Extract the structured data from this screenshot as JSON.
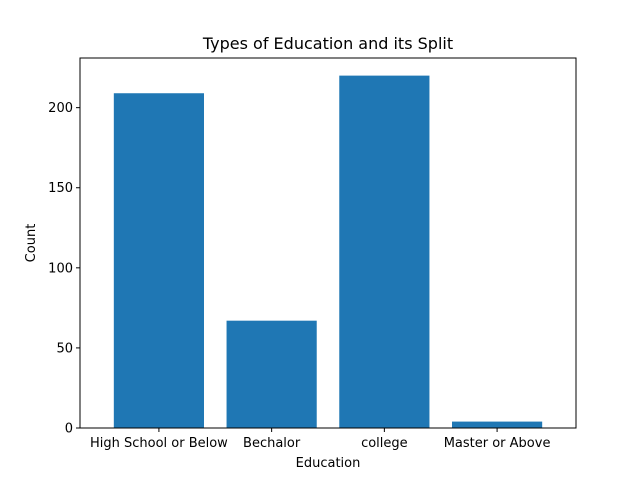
{
  "chart_data": {
    "type": "bar",
    "title": "Types of Education and its Split",
    "xlabel": "Education",
    "ylabel": "Count",
    "categories": [
      "High School or Below",
      "Bechalor",
      "college",
      "Master or Above"
    ],
    "values": [
      209,
      67,
      220,
      4
    ],
    "ylim": [
      0,
      231
    ],
    "yticks": [
      0,
      50,
      100,
      150,
      200
    ],
    "ytick_labels": [
      "0",
      "50",
      "100",
      "150",
      "200"
    ],
    "grid": false,
    "bar_color": "#1f77b4"
  }
}
